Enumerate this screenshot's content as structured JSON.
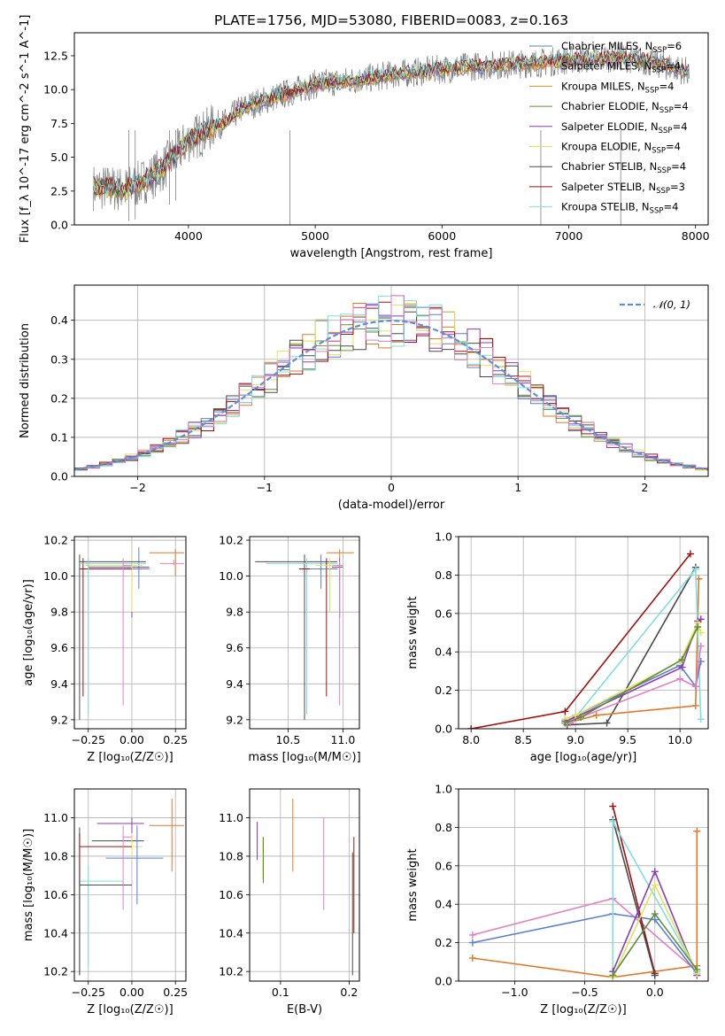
{
  "figure": {
    "title": "PLATE=1756, MJD=53080, FIBERID=0083, z=0.163"
  },
  "colors": {
    "Chabrier MILES": "#5b7fd0",
    "Salpeter MILES": "#e07a2a",
    "Kroupa MILES": "#d6932a",
    "Chabrier ELODIE": "#5e8f3e",
    "Salpeter ELODIE": "#8e3bb5",
    "Kroupa ELODIE": "#e3e35a",
    "Chabrier STELIB": "#4a4a4a",
    "Salpeter STELIB": "#a01010",
    "Kroupa STELIB": "#7fdde0",
    "pink": "#e37fc0",
    "gray": "#808080",
    "normal": "#5b8fd6"
  },
  "chart_data": [
    {
      "id": "spectrum",
      "type": "line",
      "title": "PLATE=1756, MJD=53080, FIBERID=0083, z=0.163",
      "xlabel": "wavelength [Angstrom, rest frame]",
      "ylabel": "Flux [f_λ 10^-17 erg cm^-2 s^-1 A^-1]",
      "xlim": [
        3100,
        8100
      ],
      "ylim": [
        0,
        14.2
      ],
      "xticks": [
        4000,
        5000,
        6000,
        7000,
        8000
      ],
      "yticks": [
        0.0,
        2.5,
        5.0,
        7.5,
        10.0,
        12.5
      ],
      "xtick_labels": [
        "4000",
        "5000",
        "6000",
        "7000",
        "8000"
      ],
      "ytick_labels": [
        "0.0",
        "2.5",
        "5.0",
        "7.5",
        "10.0",
        "12.5"
      ],
      "grid": false,
      "legend_position": "right",
      "continuum": {
        "x": [
          3250,
          3400,
          3500,
          3600,
          3700,
          3800,
          3900,
          4000,
          4100,
          4200,
          4300,
          4400,
          4500,
          4600,
          4700,
          4800,
          4900,
          5000,
          5200,
          5400,
          5600,
          5800,
          6000,
          6200,
          6400,
          6600,
          6800,
          7000,
          7200,
          7400,
          7600,
          7800,
          7950
        ],
        "y": [
          2.8,
          2.7,
          2.6,
          3.0,
          3.5,
          4.2,
          5.2,
          6.3,
          6.7,
          7.3,
          7.6,
          8.5,
          8.9,
          9.2,
          9.5,
          9.8,
          10.1,
          10.4,
          10.6,
          10.8,
          11.1,
          11.3,
          11.5,
          11.7,
          11.8,
          11.9,
          12.0,
          12.2,
          12.3,
          12.4,
          12.1,
          11.7,
          11.3
        ]
      },
      "series": [
        {
          "name": "Chabrier MILES, N_SSP=6",
          "color_key": "Chabrier MILES"
        },
        {
          "name": "Salpeter MILES, N_SSP=4",
          "color_key": "Salpeter MILES"
        },
        {
          "name": "Kroupa MILES, N_SSP=4",
          "color_key": "Kroupa MILES"
        },
        {
          "name": "Chabrier ELODIE, N_SSP=4",
          "color_key": "Chabrier ELODIE"
        },
        {
          "name": "Salpeter ELODIE, N_SSP=4",
          "color_key": "Salpeter ELODIE"
        },
        {
          "name": "Kroupa ELODIE, N_SSP=4",
          "color_key": "Kroupa ELODIE"
        },
        {
          "name": "Chabrier STELIB, N_SSP=4",
          "color_key": "Chabrier STELIB"
        },
        {
          "name": "Salpeter STELIB, N_SSP=3",
          "color_key": "Salpeter STELIB"
        },
        {
          "name": "Kroupa STELIB, N_SSP=4",
          "color_key": "Kroupa STELIB"
        }
      ]
    },
    {
      "id": "residuals",
      "type": "histogram",
      "xlabel": "(data-model)/error",
      "ylabel": "Normed distribution",
      "xlim": [
        -2.5,
        2.5
      ],
      "ylim": [
        0,
        0.49
      ],
      "xticks": [
        -2,
        -1,
        0,
        1,
        2
      ],
      "yticks": [
        0.0,
        0.1,
        0.2,
        0.3,
        0.4
      ],
      "xtick_labels": [
        "−2",
        "−1",
        "0",
        "1",
        "2"
      ],
      "ytick_labels": [
        "0.0",
        "0.1",
        "0.2",
        "0.3",
        "0.4"
      ],
      "grid": true,
      "legend": "𝒩(0, 1)",
      "legend_position": "top-right",
      "bin_width": 0.1,
      "bin_start": -2.5
    },
    {
      "id": "age_vs_Z",
      "type": "errorbar",
      "xlabel": "Z [log₁₀(Z/Z☉)]",
      "ylabel": "age  [log₁₀(age/yr)]",
      "xlim": [
        -0.33,
        0.31
      ],
      "ylim": [
        9.15,
        10.22
      ],
      "xticks": [
        -0.25,
        0.0,
        0.25
      ],
      "yticks": [
        9.2,
        9.4,
        9.6,
        9.8,
        10.0,
        10.2
      ],
      "xtick_labels": [
        "−0.25",
        "0.00",
        "0.25"
      ],
      "ytick_labels": [
        "9.2",
        "9.4",
        "9.6",
        "9.8",
        "10.0",
        "10.2"
      ],
      "grid": true,
      "points": [
        {
          "c": "Salpeter MILES",
          "x": 0.25,
          "y": 10.13,
          "xe": [
            0.1,
            0.3
          ],
          "ye": [
            10.0,
            10.15
          ]
        },
        {
          "c": "pink",
          "x": 0.24,
          "y": 10.07,
          "xe": [
            0.16,
            0.3
          ],
          "ye": [
            10.06,
            10.09
          ]
        },
        {
          "c": "Chabrier MILES",
          "x": 0.04,
          "y": 10.04,
          "xe": [
            -0.05,
            0.1
          ],
          "ye": [
            9.93,
            10.16
          ]
        },
        {
          "c": "Salpeter ELODIE",
          "x": 0.0,
          "y": 10.05,
          "xe": [
            -0.25,
            0.1
          ],
          "ye": [
            9.77,
            10.1
          ]
        },
        {
          "c": "Kroupa ELODIE",
          "x": 0.0,
          "y": 10.06,
          "xe": [
            -0.27,
            0.06
          ],
          "ye": [
            9.8,
            10.1
          ]
        },
        {
          "c": "Chabrier STELIB",
          "x": -0.3,
          "y": 10.08,
          "xe": [
            -0.3,
            0.08
          ],
          "ye": [
            9.2,
            10.12
          ]
        },
        {
          "c": "Salpeter STELIB",
          "x": -0.28,
          "y": 10.04,
          "xe": [
            -0.3,
            0.0
          ],
          "ye": [
            9.33,
            10.1
          ]
        },
        {
          "c": "Kroupa STELIB",
          "x": -0.25,
          "y": 10.07,
          "xe": [
            -0.3,
            0.08
          ],
          "ye": [
            9.23,
            10.1
          ]
        },
        {
          "c": "pink",
          "x": -0.05,
          "y": 10.06,
          "xe": [
            -0.05,
            0.0
          ],
          "ye": [
            9.28,
            10.1
          ]
        }
      ]
    },
    {
      "id": "age_vs_mass",
      "type": "errorbar",
      "xlabel": "mass [log₁₀(M/M☉)]",
      "ylabel": "",
      "xlim": [
        10.15,
        11.15
      ],
      "ylim": [
        9.15,
        10.22
      ],
      "xticks": [
        10.5,
        11.0
      ],
      "yticks": [
        9.2,
        9.4,
        9.6,
        9.8,
        10.0,
        10.2
      ],
      "xtick_labels": [
        "10.5",
        "11.0"
      ],
      "ytick_labels": [
        "9.2",
        "9.4",
        "9.6",
        "9.8",
        "10.0",
        "10.2"
      ],
      "grid": true,
      "points": [
        {
          "c": "Salpeter MILES",
          "x": 10.97,
          "y": 10.13,
          "xe": [
            10.85,
            11.1
          ],
          "ye": [
            10.1,
            10.15
          ]
        },
        {
          "c": "Chabrier STELIB",
          "x": 10.65,
          "y": 10.08,
          "xe": [
            10.2,
            10.95
          ],
          "ye": [
            9.2,
            10.12
          ]
        },
        {
          "c": "Kroupa STELIB",
          "x": 10.67,
          "y": 10.07,
          "xe": [
            10.3,
            10.95
          ],
          "ye": [
            9.23,
            10.1
          ]
        },
        {
          "c": "Salpeter STELIB",
          "x": 10.85,
          "y": 10.04,
          "xe": [
            10.6,
            10.95
          ],
          "ye": [
            9.33,
            10.1
          ]
        },
        {
          "c": "Chabrier MILES",
          "x": 10.8,
          "y": 10.04,
          "xe": [
            10.7,
            10.95
          ],
          "ye": [
            9.93,
            10.12
          ]
        },
        {
          "c": "Kroupa ELODIE",
          "x": 10.88,
          "y": 10.06,
          "xe": [
            10.75,
            11.0
          ],
          "ye": [
            9.8,
            10.1
          ]
        },
        {
          "c": "Salpeter ELODIE",
          "x": 10.97,
          "y": 10.05,
          "xe": [
            10.9,
            11.0
          ],
          "ye": [
            9.77,
            10.1
          ]
        },
        {
          "c": "pink",
          "x": 10.97,
          "y": 10.06,
          "xe": [
            10.9,
            11.0
          ],
          "ye": [
            9.28,
            10.08
          ]
        }
      ]
    },
    {
      "id": "weight_vs_age",
      "type": "line",
      "xlabel": "age  [log₁₀(age/yr)]",
      "ylabel": "mass weight",
      "xlim": [
        7.88,
        10.27
      ],
      "ylim": [
        0,
        1.0
      ],
      "xticks": [
        8.0,
        8.5,
        9.0,
        9.5,
        10.0
      ],
      "yticks": [
        0.0,
        0.2,
        0.4,
        0.6,
        0.8,
        1.0
      ],
      "xtick_labels": [
        "8.0",
        "8.5",
        "9.0",
        "9.5",
        "10.0"
      ],
      "ytick_labels": [
        "0.0",
        "0.2",
        "0.4",
        "0.6",
        "0.8",
        "1.0"
      ],
      "grid": true,
      "series": [
        {
          "c": "Salpeter STELIB",
          "x": [
            8.0,
            8.9,
            10.1
          ],
          "y": [
            0.0,
            0.09,
            0.91
          ]
        },
        {
          "c": "Chabrier STELIB",
          "x": [
            8.92,
            9.3,
            10.15
          ],
          "y": [
            0.02,
            0.03,
            0.84
          ]
        },
        {
          "c": "Salpeter MILES",
          "x": [
            8.92,
            9.2,
            10.15,
            10.18
          ],
          "y": [
            0.03,
            0.07,
            0.12,
            0.78
          ]
        },
        {
          "c": "Kroupa STELIB",
          "x": [
            8.92,
            9.0,
            10.15,
            10.2
          ],
          "y": [
            0.04,
            0.06,
            0.83,
            0.05
          ]
        },
        {
          "c": "Chabrier MILES",
          "x": [
            8.9,
            9.0,
            10.0,
            10.15,
            10.2
          ],
          "y": [
            0.05,
            0.07,
            0.33,
            0.22,
            0.35
          ]
        },
        {
          "c": "pink",
          "x": [
            8.95,
            9.05,
            10.0,
            10.15,
            10.2
          ],
          "y": [
            0.03,
            0.06,
            0.26,
            0.22,
            0.43
          ]
        },
        {
          "c": "Salpeter ELODIE",
          "x": [
            8.9,
            9.0,
            10.02,
            10.17,
            10.2
          ],
          "y": [
            0.04,
            0.06,
            0.32,
            0.56,
            0.57
          ]
        },
        {
          "c": "Kroupa ELODIE",
          "x": [
            8.9,
            9.0,
            10.0,
            10.17,
            10.2
          ],
          "y": [
            0.05,
            0.07,
            0.35,
            0.55,
            0.5
          ]
        },
        {
          "c": "Chabrier ELODIE",
          "x": [
            8.9,
            9.05,
            10.02,
            10.17
          ],
          "y": [
            0.03,
            0.06,
            0.36,
            0.53
          ]
        }
      ]
    },
    {
      "id": "mass_vs_Z",
      "type": "errorbar",
      "xlabel": "Z [log₁₀(Z/Z☉)]",
      "ylabel": "mass [log₁₀(M/M☉)]",
      "xlim": [
        -0.33,
        0.31
      ],
      "ylim": [
        10.15,
        11.15
      ],
      "xticks": [
        -0.25,
        0.0,
        0.25
      ],
      "yticks": [
        10.2,
        10.4,
        10.6,
        10.8,
        11.0
      ],
      "xtick_labels": [
        "−0.25",
        "0.00",
        "0.25"
      ],
      "ytick_labels": [
        "10.2",
        "10.4",
        "10.6",
        "10.8",
        "11.0"
      ],
      "grid": true,
      "points": [
        {
          "c": "Salpeter MILES",
          "x": 0.23,
          "y": 10.96,
          "xe": [
            0.1,
            0.3
          ],
          "ye": [
            10.72,
            11.1
          ]
        },
        {
          "c": "Salpeter ELODIE",
          "x": 0.0,
          "y": 10.97,
          "xe": [
            -0.2,
            0.07
          ],
          "ye": [
            10.88,
            11.0
          ]
        },
        {
          "c": "Chabrier STELIB",
          "x": -0.3,
          "y": 10.88,
          "xe": [
            -0.23,
            0.07
          ],
          "ye": [
            10.18,
            10.95
          ]
        },
        {
          "c": "Kroupa ELODIE",
          "x": 0.0,
          "y": 10.85,
          "xe": [
            -0.08,
            0.06
          ],
          "ye": [
            10.78,
            10.92
          ]
        },
        {
          "c": "Salpeter STELIB",
          "x": -0.3,
          "y": 10.85,
          "xe": [
            -0.3,
            0.0
          ],
          "ye": [
            10.4,
            10.92
          ]
        },
        {
          "c": "Chabrier MILES",
          "x": 0.03,
          "y": 10.79,
          "xe": [
            -0.15,
            0.18
          ],
          "ye": [
            10.55,
            10.96
          ]
        },
        {
          "c": "Kroupa STELIB",
          "x": -0.25,
          "y": 10.67,
          "xe": [
            -0.3,
            -0.05
          ],
          "ye": [
            10.22,
            10.75
          ]
        },
        {
          "c": "Chabrier STELIB",
          "x": -0.3,
          "y": 10.65,
          "xe": [
            -0.3,
            0.0
          ],
          "ye": [
            10.18,
            10.7
          ]
        },
        {
          "c": "pink",
          "x": -0.05,
          "y": 10.9,
          "xe": [
            -0.05,
            0.0
          ],
          "ye": [
            10.52,
            10.96
          ]
        }
      ]
    },
    {
      "id": "mass_vs_EBV",
      "type": "errorbar",
      "xlabel": "E(B-V)",
      "ylabel": "",
      "xlim": [
        0.055,
        0.215
      ],
      "ylim": [
        10.15,
        11.15
      ],
      "xticks": [
        0.1,
        0.2
      ],
      "yticks": [
        10.2,
        10.4,
        10.6,
        10.8,
        11.0
      ],
      "xtick_labels": [
        "0.1",
        "0.2"
      ],
      "ytick_labels": [
        "10.2",
        "10.4",
        "10.6",
        "10.8",
        "11.0"
      ],
      "grid": true,
      "points": [
        {
          "c": "Salpeter ELODIE",
          "x": 0.066,
          "y": 10.9,
          "xe": [
            0.066,
            0.066
          ],
          "ye": [
            10.78,
            10.98
          ]
        },
        {
          "c": "Kroupa ELODIE",
          "x": 0.074,
          "y": 10.8,
          "xe": [
            0.074,
            0.074
          ],
          "ye": [
            10.68,
            10.9
          ]
        },
        {
          "c": "Chabrier ELODIE",
          "x": 0.075,
          "y": 10.78,
          "xe": [
            0.075,
            0.075
          ],
          "ye": [
            10.66,
            10.9
          ]
        },
        {
          "c": "Salpeter MILES",
          "x": 0.118,
          "y": 10.9,
          "xe": [
            0.118,
            0.118
          ],
          "ye": [
            10.72,
            11.1
          ]
        },
        {
          "c": "pink",
          "x": 0.163,
          "y": 10.8,
          "xe": [
            0.163,
            0.163
          ],
          "ye": [
            10.52,
            11.0
          ]
        },
        {
          "c": "Chabrier STELIB",
          "x": 0.205,
          "y": 10.5,
          "xe": [
            0.205,
            0.205
          ],
          "ye": [
            10.18,
            10.82
          ]
        },
        {
          "c": "Salpeter STELIB",
          "x": 0.207,
          "y": 10.65,
          "xe": [
            0.207,
            0.207
          ],
          "ye": [
            10.4,
            10.9
          ]
        }
      ]
    },
    {
      "id": "weight_vs_Z",
      "type": "line",
      "xlabel": "Z [log₁₀(Z/Z☉)]",
      "ylabel": "mass weight",
      "xlim": [
        -1.4,
        0.38
      ],
      "ylim": [
        0,
        1.0
      ],
      "xticks": [
        -1.0,
        -0.5,
        0.0
      ],
      "yticks": [
        0.0,
        0.2,
        0.4,
        0.6,
        0.8,
        1.0
      ],
      "xtick_labels": [
        "−1.0",
        "−0.5",
        "0.0"
      ],
      "ytick_labels": [
        "0.0",
        "0.2",
        "0.4",
        "0.6",
        "0.8",
        "1.0"
      ],
      "grid": true,
      "series": [
        {
          "c": "Salpeter MILES",
          "x": [
            -1.3,
            -0.3,
            0.3,
            0.3
          ],
          "y": [
            0.12,
            0.02,
            0.08,
            0.78
          ]
        },
        {
          "c": "pink",
          "x": [
            -1.3,
            -0.3,
            0.3
          ],
          "y": [
            0.24,
            0.43,
            0.05
          ]
        },
        {
          "c": "Chabrier MILES",
          "x": [
            -1.3,
            -0.3,
            0.0,
            0.3
          ],
          "y": [
            0.2,
            0.35,
            0.32,
            0.04
          ]
        },
        {
          "c": "Salpeter STELIB",
          "x": [
            -0.3,
            0.0
          ],
          "y": [
            0.91,
            0.04
          ]
        },
        {
          "c": "Chabrier STELIB",
          "x": [
            -0.3,
            0.0
          ],
          "y": [
            0.84,
            0.03
          ]
        },
        {
          "c": "Kroupa STELIB",
          "x": [
            -0.3,
            -0.3,
            0.3,
            0.3
          ],
          "y": [
            0.05,
            0.83,
            0.05,
            0.04
          ]
        },
        {
          "c": "Salpeter ELODIE",
          "x": [
            -0.3,
            0.0,
            0.3
          ],
          "y": [
            0.05,
            0.57,
            0.03
          ]
        },
        {
          "c": "Kroupa ELODIE",
          "x": [
            -0.3,
            0.0,
            0.3
          ],
          "y": [
            0.02,
            0.5,
            0.04
          ]
        },
        {
          "c": "Chabrier ELODIE",
          "x": [
            -0.3,
            0.0,
            0.3
          ],
          "y": [
            0.03,
            0.35,
            0.06
          ]
        }
      ]
    }
  ]
}
